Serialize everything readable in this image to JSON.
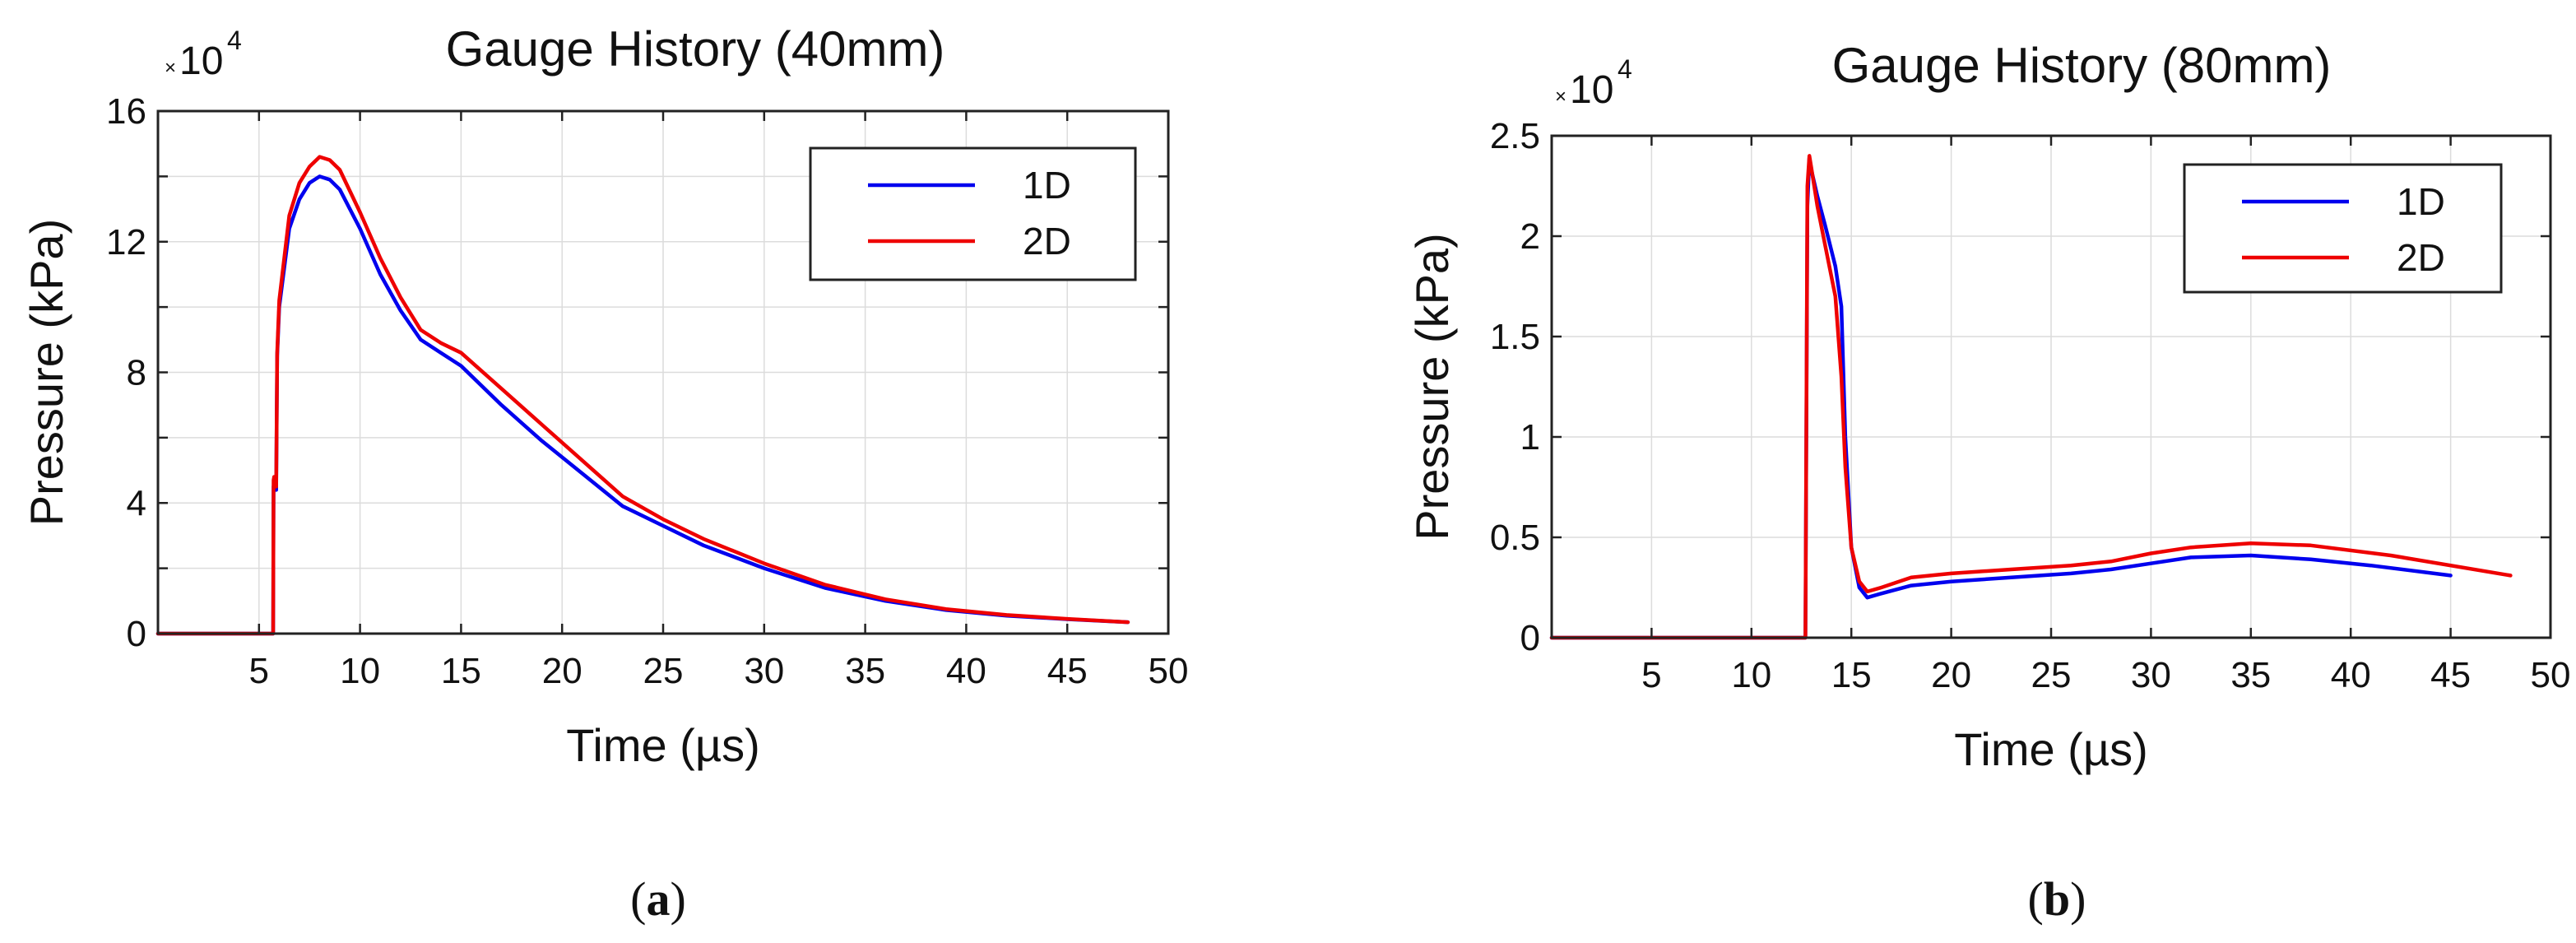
{
  "chart_data": [
    {
      "id": "a",
      "type": "line",
      "title": "Gauge History (40mm)",
      "xlabel": "Time (µs)",
      "ylabel": "Pressure (kPa)",
      "multiplier": {
        "base": "10",
        "exp": "4",
        "x": "×"
      },
      "xlim": [
        0,
        50
      ],
      "ylim": [
        0,
        16
      ],
      "xticks": [
        5,
        10,
        15,
        20,
        25,
        30,
        35,
        40,
        45,
        50
      ],
      "yticks": [
        0,
        4,
        8,
        12,
        16
      ],
      "yminor": [
        2,
        6,
        10,
        14
      ],
      "grid": true,
      "legend_position": "top-right",
      "caption": {
        "open": "(",
        "letter": "a",
        "close": ")"
      },
      "series": [
        {
          "name": "1D",
          "color": "#0000ee",
          "x": [
            0,
            5.7,
            5.72,
            5.75,
            5.85,
            5.9,
            6.0,
            6.5,
            7.0,
            7.5,
            8.0,
            8.5,
            9.0,
            10.0,
            11.0,
            12.0,
            13.0,
            14.0,
            15.0,
            17.0,
            19.0,
            21.0,
            23.0,
            25.0,
            27.0,
            30.0,
            33.0,
            36.0,
            39.0,
            42.0,
            45.0,
            48.0
          ],
          "y": [
            0,
            0,
            4.5,
            4.6,
            4.4,
            8.5,
            10.0,
            12.4,
            13.3,
            13.8,
            14.0,
            13.9,
            13.6,
            12.4,
            11.0,
            9.9,
            9.0,
            8.6,
            8.2,
            7.0,
            5.9,
            4.9,
            3.9,
            3.3,
            2.7,
            2.0,
            1.4,
            1.0,
            0.72,
            0.55,
            0.44,
            0.35
          ]
        },
        {
          "name": "2D",
          "color": "#ee0000",
          "x": [
            0,
            5.7,
            5.72,
            5.75,
            5.85,
            5.9,
            6.0,
            6.5,
            7.0,
            7.5,
            8.0,
            8.5,
            9.0,
            10.0,
            11.0,
            12.0,
            13.0,
            14.0,
            15.0,
            17.0,
            19.0,
            21.0,
            23.0,
            25.0,
            27.0,
            30.0,
            33.0,
            36.0,
            39.0,
            42.0,
            45.0,
            48.0
          ],
          "y": [
            0,
            0,
            4.7,
            4.8,
            4.5,
            8.6,
            10.2,
            12.8,
            13.8,
            14.3,
            14.6,
            14.5,
            14.2,
            12.9,
            11.5,
            10.3,
            9.3,
            8.9,
            8.6,
            7.5,
            6.4,
            5.3,
            4.2,
            3.5,
            2.9,
            2.15,
            1.5,
            1.05,
            0.75,
            0.57,
            0.45,
            0.35
          ]
        }
      ]
    },
    {
      "id": "b",
      "type": "line",
      "title": "Gauge History (80mm)",
      "xlabel": "Time (µs)",
      "ylabel": "Pressure (kPa)",
      "multiplier": {
        "base": "10",
        "exp": "4",
        "x": "×"
      },
      "xlim": [
        0,
        50
      ],
      "ylim": [
        0,
        2.5
      ],
      "xticks": [
        5,
        10,
        15,
        20,
        25,
        30,
        35,
        40,
        45,
        50
      ],
      "yticks": [
        0,
        0.5,
        1,
        1.5,
        2,
        2.5
      ],
      "yminor": [],
      "grid": true,
      "legend_position": "top-right",
      "caption": {
        "open": "(",
        "letter": "b",
        "close": ")"
      },
      "series": [
        {
          "name": "1D",
          "color": "#0000ee",
          "x": [
            0,
            12.7,
            12.8,
            12.9,
            13.0,
            13.3,
            13.7,
            14.2,
            14.5,
            14.7,
            15.0,
            15.4,
            15.8,
            16.5,
            18.0,
            20.0,
            23.0,
            26.0,
            28.0,
            30.0,
            32.0,
            35.0,
            38.0,
            41.0,
            45.0
          ],
          "y": [
            0,
            0,
            2.15,
            2.39,
            2.33,
            2.2,
            2.05,
            1.85,
            1.65,
            1.0,
            0.45,
            0.25,
            0.2,
            0.22,
            0.26,
            0.28,
            0.3,
            0.32,
            0.34,
            0.37,
            0.4,
            0.41,
            0.39,
            0.36,
            0.31
          ]
        },
        {
          "name": "2D",
          "color": "#ee0000",
          "x": [
            0,
            12.7,
            12.8,
            12.9,
            13.0,
            13.3,
            13.7,
            14.2,
            14.5,
            14.7,
            15.0,
            15.4,
            15.8,
            16.5,
            18.0,
            20.0,
            23.0,
            26.0,
            28.0,
            30.0,
            32.0,
            35.0,
            38.0,
            42.0,
            48.0
          ],
          "y": [
            0,
            0,
            2.25,
            2.4,
            2.34,
            2.15,
            1.95,
            1.7,
            1.3,
            0.85,
            0.45,
            0.28,
            0.23,
            0.25,
            0.3,
            0.32,
            0.34,
            0.36,
            0.38,
            0.42,
            0.45,
            0.47,
            0.46,
            0.41,
            0.31
          ]
        }
      ]
    }
  ]
}
